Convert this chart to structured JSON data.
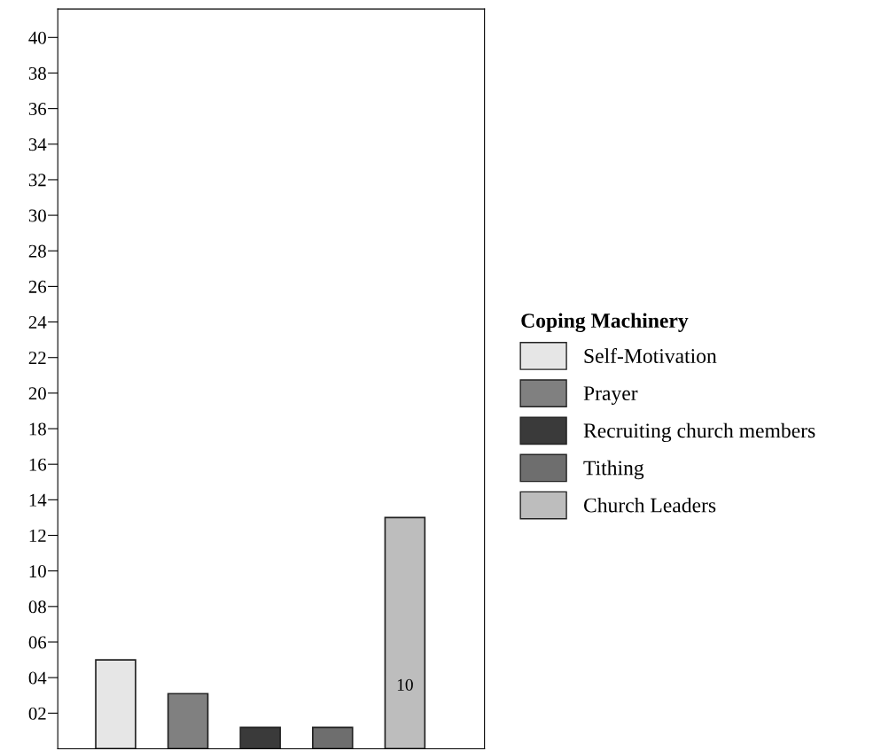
{
  "chart_data": {
    "type": "bar",
    "legend_title": "Coping Machinery",
    "categories": [
      null,
      null,
      null,
      null,
      null
    ],
    "series": [
      {
        "name": "Self-Motivation",
        "color": "#e6e6e6",
        "values": [
          5.0,
          null,
          null,
          null,
          null
        ]
      },
      {
        "name": "Prayer",
        "color": "#808080",
        "values": [
          null,
          3.1,
          null,
          null,
          null
        ]
      },
      {
        "name": "Recruiting church members",
        "color": "#3a3a3a",
        "values": [
          null,
          null,
          1.2,
          null,
          null
        ]
      },
      {
        "name": "Tithing",
        "color": "#6e6e6e",
        "values": [
          null,
          null,
          null,
          1.2,
          null
        ]
      },
      {
        "name": "Church Leaders",
        "color": "#bdbdbd",
        "values": [
          null,
          null,
          null,
          null,
          13.0
        ]
      }
    ],
    "annotations": [
      "10"
    ],
    "ylim": [
      0,
      41.6
    ],
    "yticks": [
      {
        "value": 2,
        "label": "02"
      },
      {
        "value": 4,
        "label": "04"
      },
      {
        "value": 6,
        "label": "06"
      },
      {
        "value": 8,
        "label": "08"
      },
      10,
      12,
      14,
      16,
      18,
      20,
      22,
      24,
      26,
      28,
      30,
      32,
      34,
      36,
      38,
      40
    ],
    "tick_labels": "y",
    "grid": false,
    "legend": "right"
  }
}
